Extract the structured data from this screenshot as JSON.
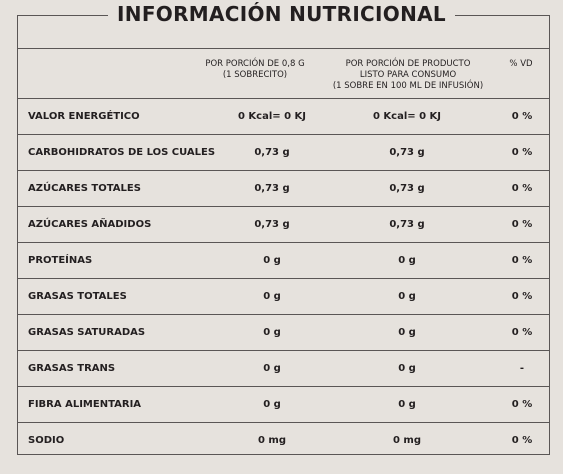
{
  "title": "INFORMACIÓN NUTRICIONAL",
  "headers": {
    "col_a_line1": "POR PORCIÓN DE 0,8 G",
    "col_a_line2": "(1 SOBRECITO)",
    "col_b_line1": "POR PORCIÓN DE PRODUCTO",
    "col_b_line2": "LISTO PARA CONSUMO",
    "col_b_line3": "(1 SOBRE EN 100 ML DE INFUSIÓN)",
    "col_c": "% VD"
  },
  "rows": [
    {
      "label": "VALOR ENERGÉTICO",
      "a": "0 Kcal= 0 KJ",
      "b": "0 Kcal= 0 KJ",
      "c": "0 %"
    },
    {
      "label": "CARBOHIDRATOS DE LOS CUALES",
      "a": "0,73 g",
      "b": "0,73 g",
      "c": "0 %"
    },
    {
      "label": "AZÚCARES TOTALES",
      "a": "0,73 g",
      "b": "0,73 g",
      "c": "0 %"
    },
    {
      "label": "AZÚCARES AÑADIDOS",
      "a": "0,73 g",
      "b": "0,73 g",
      "c": "0 %"
    },
    {
      "label": "PROTEÍNAS",
      "a": "0 g",
      "b": "0 g",
      "c": "0 %"
    },
    {
      "label": "GRASAS TOTALES",
      "a": "0 g",
      "b": "0 g",
      "c": "0 %"
    },
    {
      "label": "GRASAS SATURADAS",
      "a": "0 g",
      "b": "0 g",
      "c": "0 %"
    },
    {
      "label": "GRASAS TRANS",
      "a": "0 g",
      "b": "0 g",
      "c": "-"
    },
    {
      "label": "FIBRA ALIMENTARIA",
      "a": "0 g",
      "b": "0 g",
      "c": "0 %"
    },
    {
      "label": "SODIO",
      "a": "0 mg",
      "b": "0 mg",
      "c": "0 %"
    }
  ]
}
